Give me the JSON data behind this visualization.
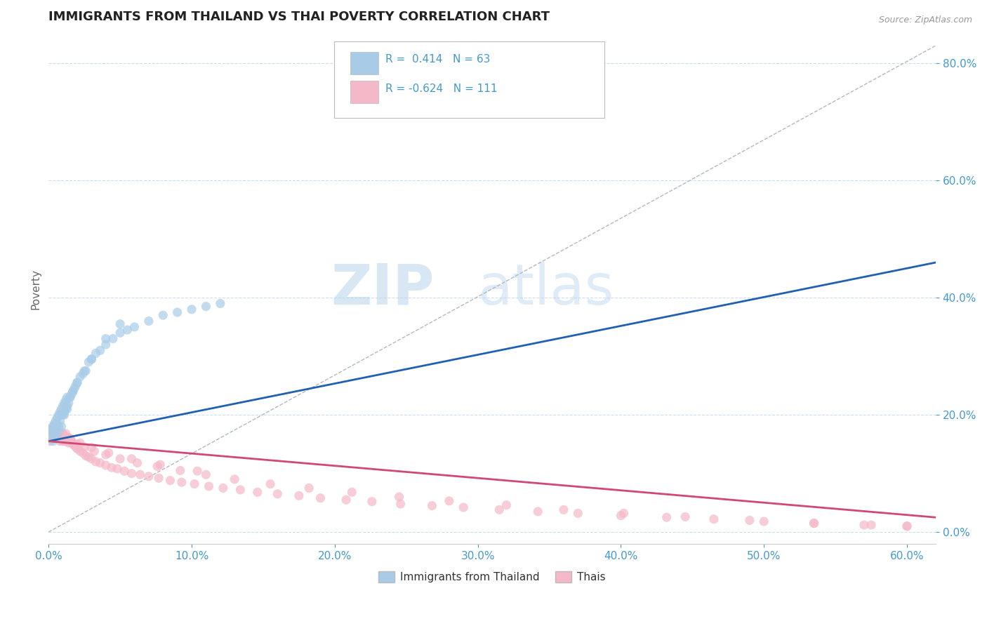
{
  "title": "IMMIGRANTS FROM THAILAND VS THAI POVERTY CORRELATION CHART",
  "source_text": "Source: ZipAtlas.com",
  "xlim": [
    0.0,
    0.62
  ],
  "ylim": [
    -0.02,
    0.85
  ],
  "ylabel": "Poverty",
  "blue_color": "#a8cce8",
  "pink_color": "#f4b8c8",
  "blue_line_color": "#2060b0",
  "pink_line_color": "#d04878",
  "watermark_zip": "ZIP",
  "watermark_atlas": "atlas",
  "title_color": "#222222",
  "axis_label_color": "#4499cc",
  "blue_scatter_x": [
    0.001,
    0.002,
    0.002,
    0.003,
    0.003,
    0.004,
    0.004,
    0.005,
    0.005,
    0.006,
    0.006,
    0.007,
    0.007,
    0.008,
    0.008,
    0.009,
    0.009,
    0.01,
    0.01,
    0.011,
    0.011,
    0.012,
    0.012,
    0.013,
    0.013,
    0.014,
    0.015,
    0.016,
    0.017,
    0.018,
    0.019,
    0.02,
    0.022,
    0.024,
    0.026,
    0.028,
    0.03,
    0.033,
    0.036,
    0.04,
    0.045,
    0.05,
    0.055,
    0.06,
    0.07,
    0.08,
    0.09,
    0.1,
    0.11,
    0.12,
    0.003,
    0.005,
    0.007,
    0.009,
    0.011,
    0.013,
    0.015,
    0.017,
    0.02,
    0.025,
    0.03,
    0.04,
    0.05
  ],
  "blue_scatter_y": [
    0.165,
    0.17,
    0.175,
    0.175,
    0.18,
    0.17,
    0.185,
    0.175,
    0.19,
    0.185,
    0.195,
    0.18,
    0.2,
    0.19,
    0.205,
    0.2,
    0.21,
    0.2,
    0.215,
    0.205,
    0.22,
    0.21,
    0.225,
    0.215,
    0.23,
    0.22,
    0.23,
    0.235,
    0.24,
    0.245,
    0.25,
    0.255,
    0.265,
    0.27,
    0.275,
    0.29,
    0.295,
    0.305,
    0.31,
    0.32,
    0.33,
    0.34,
    0.345,
    0.35,
    0.36,
    0.37,
    0.375,
    0.38,
    0.385,
    0.39,
    0.155,
    0.16,
    0.17,
    0.18,
    0.2,
    0.21,
    0.23,
    0.24,
    0.255,
    0.275,
    0.295,
    0.33,
    0.355
  ],
  "pink_scatter_x": [
    0.001,
    0.002,
    0.003,
    0.003,
    0.004,
    0.004,
    0.005,
    0.005,
    0.006,
    0.006,
    0.007,
    0.007,
    0.008,
    0.008,
    0.009,
    0.009,
    0.01,
    0.01,
    0.011,
    0.011,
    0.012,
    0.012,
    0.013,
    0.013,
    0.014,
    0.014,
    0.015,
    0.016,
    0.017,
    0.018,
    0.019,
    0.02,
    0.022,
    0.024,
    0.026,
    0.028,
    0.03,
    0.033,
    0.036,
    0.04,
    0.044,
    0.048,
    0.053,
    0.058,
    0.064,
    0.07,
    0.077,
    0.085,
    0.093,
    0.102,
    0.112,
    0.122,
    0.134,
    0.146,
    0.16,
    0.175,
    0.19,
    0.208,
    0.226,
    0.246,
    0.268,
    0.29,
    0.315,
    0.342,
    0.37,
    0.4,
    0.432,
    0.465,
    0.5,
    0.535,
    0.57,
    0.6,
    0.002,
    0.004,
    0.006,
    0.008,
    0.01,
    0.013,
    0.016,
    0.02,
    0.025,
    0.032,
    0.04,
    0.05,
    0.062,
    0.076,
    0.092,
    0.11,
    0.13,
    0.155,
    0.182,
    0.212,
    0.245,
    0.28,
    0.32,
    0.36,
    0.402,
    0.445,
    0.49,
    0.535,
    0.575,
    0.6,
    0.003,
    0.006,
    0.01,
    0.015,
    0.022,
    0.03,
    0.042,
    0.058,
    0.078,
    0.104
  ],
  "pink_scatter_y": [
    0.155,
    0.165,
    0.16,
    0.17,
    0.165,
    0.175,
    0.16,
    0.17,
    0.165,
    0.175,
    0.16,
    0.17,
    0.155,
    0.165,
    0.16,
    0.17,
    0.155,
    0.165,
    0.155,
    0.162,
    0.158,
    0.168,
    0.155,
    0.162,
    0.152,
    0.16,
    0.158,
    0.155,
    0.15,
    0.148,
    0.145,
    0.142,
    0.138,
    0.135,
    0.13,
    0.128,
    0.125,
    0.12,
    0.118,
    0.114,
    0.11,
    0.108,
    0.104,
    0.1,
    0.098,
    0.095,
    0.092,
    0.088,
    0.085,
    0.082,
    0.078,
    0.075,
    0.072,
    0.068,
    0.065,
    0.062,
    0.058,
    0.055,
    0.052,
    0.048,
    0.045,
    0.042,
    0.038,
    0.035,
    0.032,
    0.028,
    0.025,
    0.022,
    0.018,
    0.015,
    0.012,
    0.01,
    0.175,
    0.172,
    0.168,
    0.165,
    0.162,
    0.158,
    0.155,
    0.15,
    0.145,
    0.138,
    0.132,
    0.125,
    0.118,
    0.112,
    0.105,
    0.098,
    0.09,
    0.082,
    0.075,
    0.068,
    0.06,
    0.053,
    0.046,
    0.038,
    0.032,
    0.026,
    0.02,
    0.015,
    0.012,
    0.01,
    0.18,
    0.175,
    0.168,
    0.16,
    0.152,
    0.144,
    0.135,
    0.125,
    0.115,
    0.104
  ],
  "blue_line_x0": 0.0,
  "blue_line_y0": 0.155,
  "blue_line_x1": 0.62,
  "blue_line_y1": 0.46,
  "pink_line_x0": 0.0,
  "pink_line_y0": 0.155,
  "pink_line_x1": 0.62,
  "pink_line_y1": 0.025,
  "dash_line_x0": 0.0,
  "dash_line_y0": 0.0,
  "dash_line_x1": 0.62,
  "dash_line_y1": 0.83
}
